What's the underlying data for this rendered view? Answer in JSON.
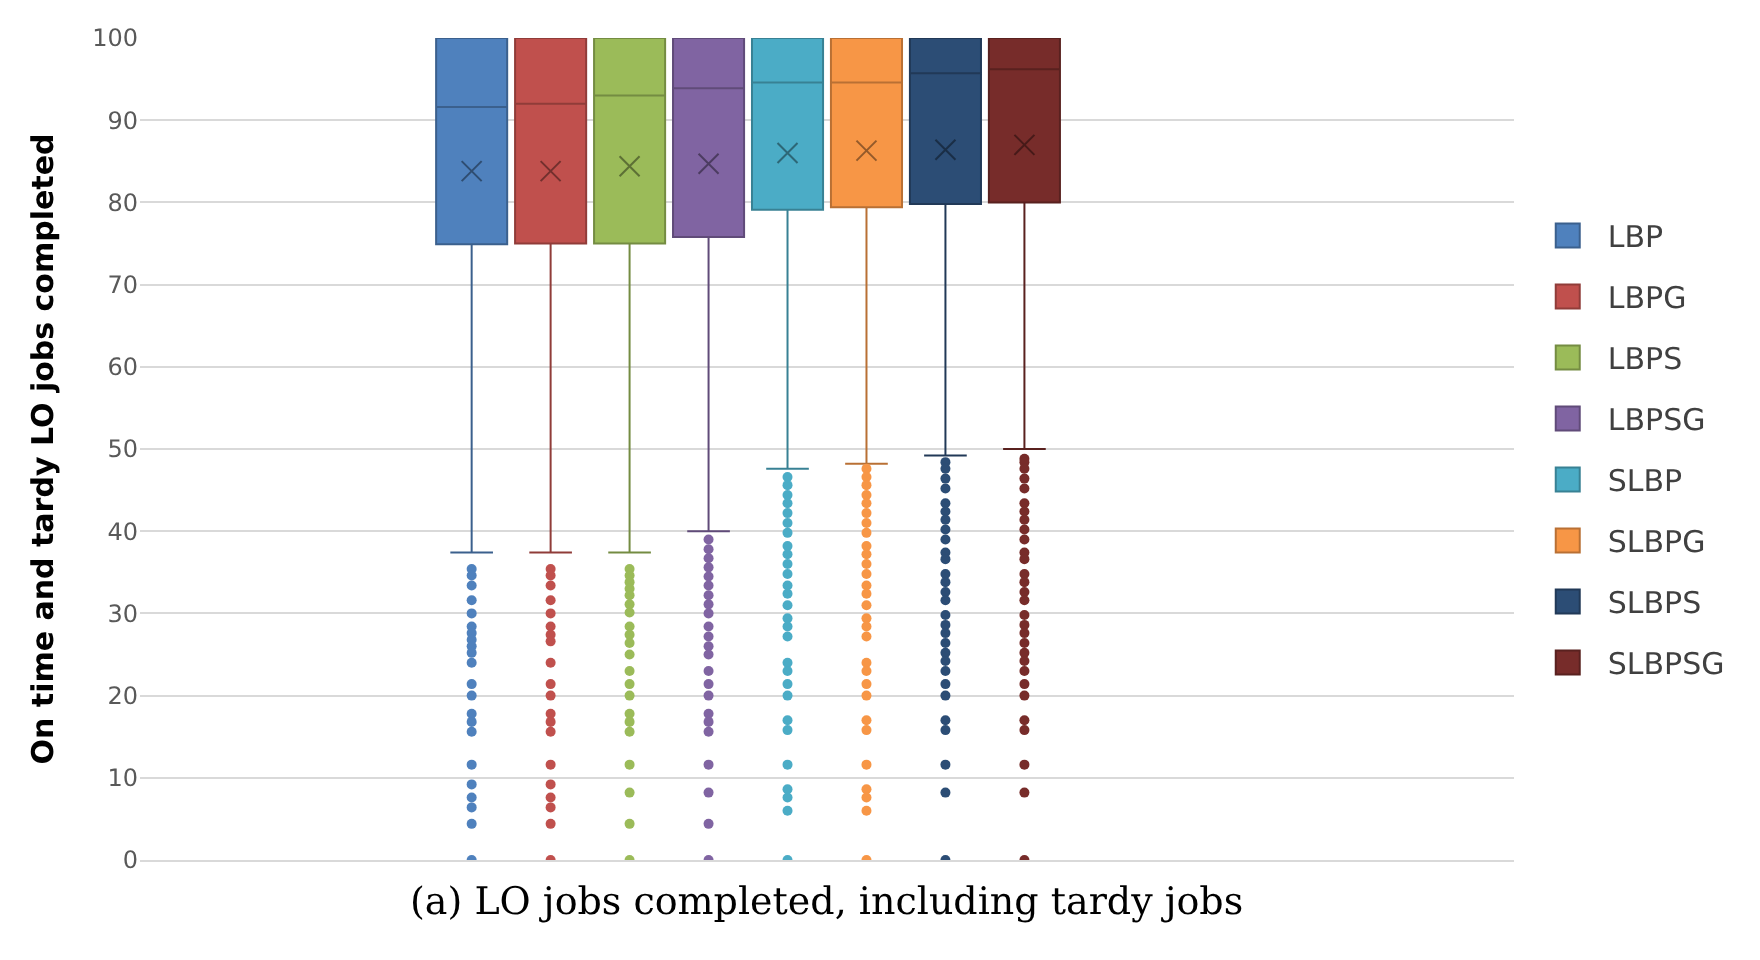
{
  "chart_data": {
    "type": "box",
    "ylabel": "On time and tardy LO jobs completed",
    "categories": [
      null
    ],
    "ylim": [
      0,
      100
    ],
    "yticks": [
      0,
      10,
      20,
      30,
      40,
      50,
      60,
      70,
      80,
      90,
      100
    ],
    "grid": "y",
    "legend": "right",
    "annotations": [
      "(a) LO jobs completed, including tardy jobs"
    ],
    "series": [
      {
        "name": "LBP",
        "color": "#4f81bd",
        "boxes": [
          {
            "low": 37.4,
            "q1": 74.9,
            "median": 91.6,
            "q3": 100,
            "high": 100,
            "mean": 83.8,
            "outliers": [
              35.4,
              34.6,
              33.4,
              31.6,
              30,
              28.4,
              27.6,
              26.8,
              26,
              25.2,
              24,
              21.4,
              20,
              17.8,
              16.8,
              15.6,
              11.6,
              9.2,
              7.6,
              6.4,
              4.4,
              0
            ]
          }
        ]
      },
      {
        "name": "LBPG",
        "color": "#c0504d",
        "boxes": [
          {
            "low": 37.4,
            "q1": 75,
            "median": 92,
            "q3": 100,
            "high": 100,
            "mean": 83.8,
            "outliers": [
              35.4,
              34.6,
              33.4,
              31.6,
              30,
              28.4,
              27.4,
              26.6,
              24,
              21.4,
              20,
              17.8,
              16.8,
              15.6,
              11.6,
              9.2,
              7.6,
              6.4,
              4.4,
              0
            ]
          }
        ]
      },
      {
        "name": "LBPS",
        "color": "#9bbb59",
        "boxes": [
          {
            "low": 37.4,
            "q1": 75,
            "median": 93,
            "q3": 100,
            "high": 100,
            "mean": 84.4,
            "outliers": [
              35.4,
              34.6,
              33.8,
              33,
              32.2,
              31.1,
              30.1,
              28.4,
              27.4,
              26.4,
              25,
              23,
              21.4,
              20,
              17.8,
              16.8,
              15.6,
              11.6,
              8.2,
              4.4,
              0
            ]
          }
        ]
      },
      {
        "name": "LBPSG",
        "color": "#8064a2",
        "boxes": [
          {
            "low": 40,
            "q1": 75.8,
            "median": 93.9,
            "q3": 100,
            "high": 100,
            "mean": 84.7,
            "outliers": [
              39,
              37.8,
              36.7,
              35.6,
              34.5,
              33.4,
              32.2,
              31.1,
              30,
              28.4,
              27.2,
              26,
              25,
              23,
              21.4,
              20,
              17.8,
              16.8,
              15.6,
              11.6,
              8.2,
              4.4,
              0
            ]
          }
        ]
      },
      {
        "name": "SLBP",
        "color": "#4bacc6",
        "boxes": [
          {
            "low": 47.6,
            "q1": 79.1,
            "median": 94.6,
            "q3": 100,
            "high": 100,
            "mean": 86,
            "outliers": [
              46.6,
              45.6,
              44.4,
              43.4,
              42.2,
              41,
              39.8,
              38.2,
              37.2,
              36,
              34.8,
              33.4,
              32.4,
              31,
              29.4,
              28.4,
              27.2,
              24,
              23,
              21.4,
              20,
              17,
              15.8,
              11.6,
              8.6,
              7.6,
              6,
              0
            ]
          }
        ]
      },
      {
        "name": "SLBPG",
        "color": "#f79646",
        "boxes": [
          {
            "low": 48.2,
            "q1": 79.4,
            "median": 94.6,
            "q3": 100,
            "high": 100,
            "mean": 86.3,
            "outliers": [
              47.6,
              46.6,
              45.6,
              44.4,
              43.4,
              42.2,
              41,
              39.8,
              38.2,
              37.2,
              36,
              34.8,
              33.4,
              32.4,
              31,
              29.4,
              28.4,
              27.2,
              24,
              23,
              21.4,
              20,
              17,
              15.8,
              11.6,
              8.6,
              7.6,
              6,
              0
            ]
          }
        ]
      },
      {
        "name": "SLBPS",
        "color": "#2c4d75",
        "boxes": [
          {
            "low": 49.2,
            "q1": 79.8,
            "median": 95.7,
            "q3": 100,
            "high": 100,
            "mean": 86.4,
            "outliers": [
              48.4,
              47.6,
              46.4,
              45.2,
              43.4,
              42.4,
              41.4,
              40.2,
              39,
              37.4,
              36.6,
              34.8,
              33.8,
              32.6,
              31.6,
              29.8,
              28.6,
              27.6,
              26.4,
              25.2,
              24.2,
              23,
              21.4,
              20,
              17,
              15.8,
              11.6,
              8.2,
              0
            ]
          }
        ]
      },
      {
        "name": "SLBPSG",
        "color": "#772c2a",
        "boxes": [
          {
            "low": 50,
            "q1": 80,
            "median": 96.2,
            "q3": 100,
            "high": 100,
            "mean": 87,
            "outliers": [
              48.8,
              48.4,
              47.6,
              46.4,
              45.2,
              43.4,
              42.4,
              41.4,
              40.2,
              39,
              37.4,
              36.6,
              34.8,
              33.8,
              32.6,
              31.6,
              29.8,
              28.6,
              27.6,
              26.4,
              25.2,
              24.2,
              23,
              21.4,
              20,
              17,
              15.8,
              11.6,
              8.2,
              0
            ]
          }
        ]
      }
    ]
  }
}
